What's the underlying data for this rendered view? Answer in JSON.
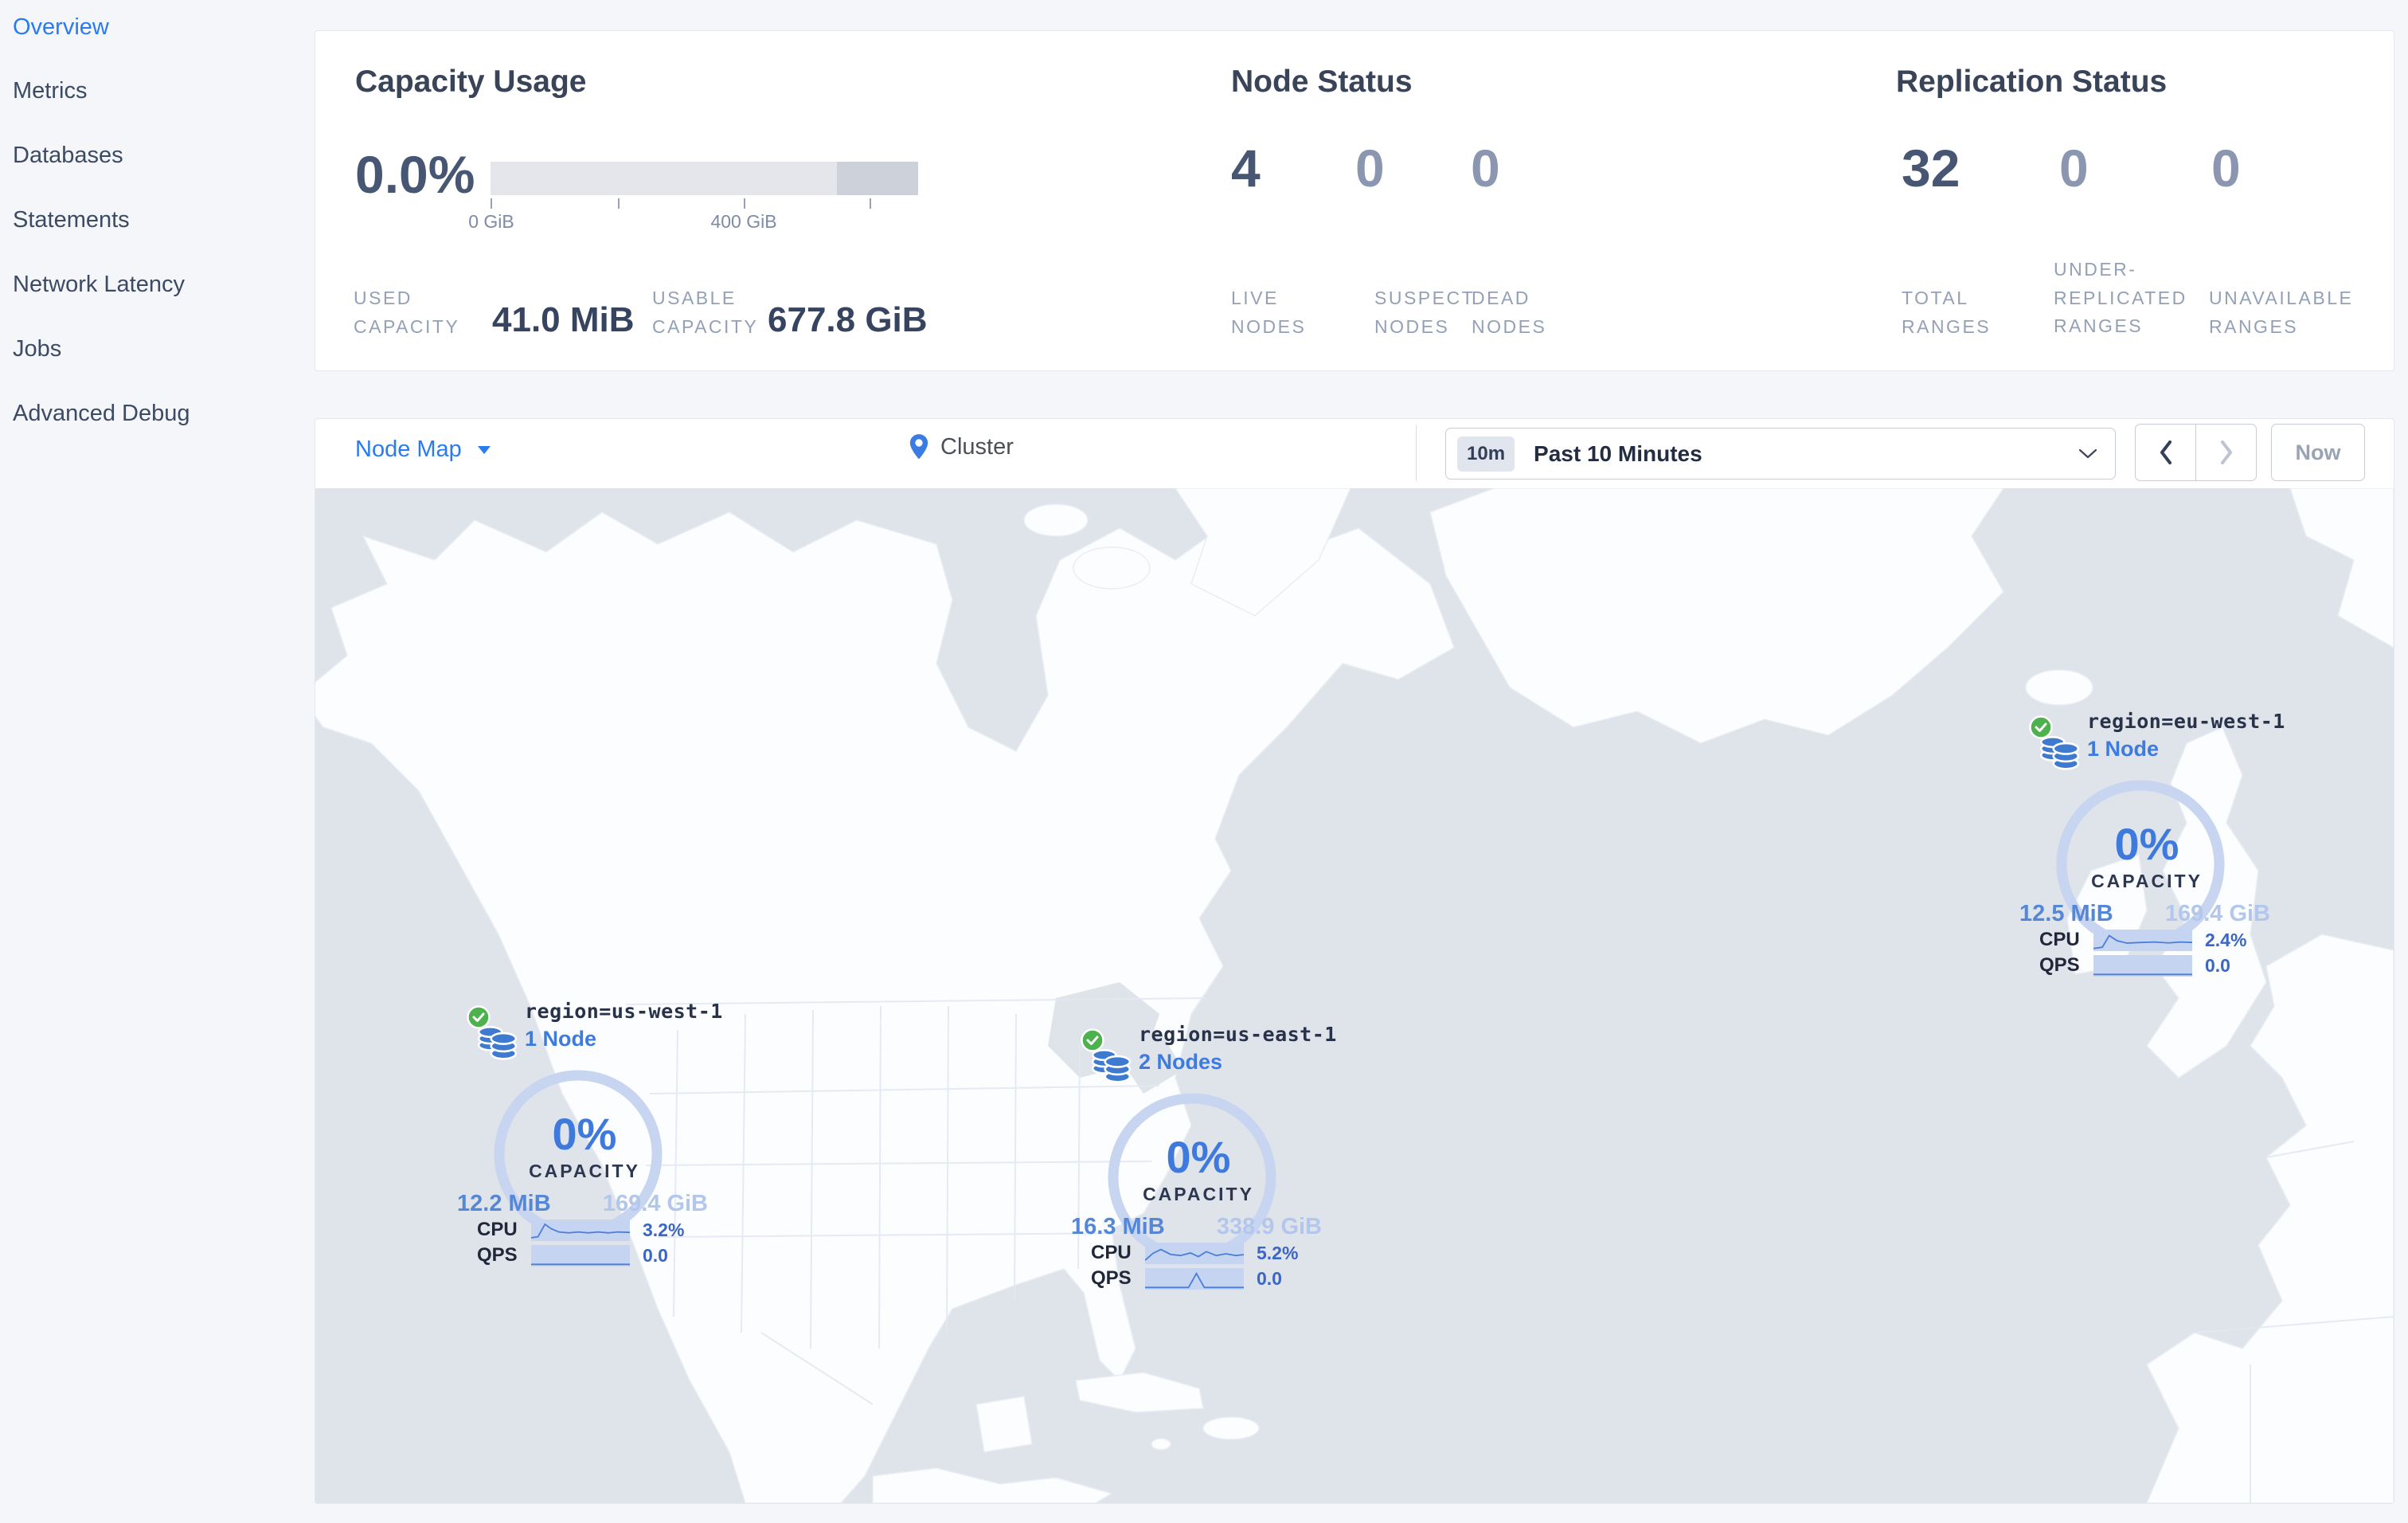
{
  "sidebar": {
    "items": [
      {
        "label": "Overview",
        "active": true
      },
      {
        "label": "Metrics",
        "active": false
      },
      {
        "label": "Databases",
        "active": false
      },
      {
        "label": "Statements",
        "active": false
      },
      {
        "label": "Network Latency",
        "active": false
      },
      {
        "label": "Jobs",
        "active": false
      },
      {
        "label": "Advanced Debug",
        "active": false
      }
    ]
  },
  "panels": {
    "capacity": {
      "title": "Capacity Usage",
      "percent": "0.0%",
      "tick_zero": "0 GiB",
      "tick_mid": "400 GiB",
      "used_label": "USED CAPACITY",
      "used_value": "41.0 MiB",
      "usable_label": "USABLE CAPACITY",
      "usable_value": "677.8 GiB"
    },
    "nodes": {
      "title": "Node Status",
      "live_value": "4",
      "live_label": "LIVE NODES",
      "suspect_value": "0",
      "suspect_label": "SUSPECT NODES",
      "dead_value": "0",
      "dead_label": "DEAD NODES"
    },
    "replication": {
      "title": "Replication Status",
      "total_value": "32",
      "total_label": "TOTAL RANGES",
      "under_value": "0",
      "under_label": "UNDER-REPLICATED RANGES",
      "unavail_value": "0",
      "unavail_label": "UNAVAILABLE RANGES"
    }
  },
  "toolbar": {
    "view_selector": "Node Map",
    "breadcrumb": "Cluster",
    "time_badge": "10m",
    "time_range": "Past 10 Minutes",
    "now_label": "Now"
  },
  "map": {
    "capacity_word": "CAPACITY",
    "markers": [
      {
        "region": "region=us-west-1",
        "nodes": "1 Node",
        "capacity_pct": "0%",
        "used": "12.2 MiB",
        "usable": "169.4 GiB",
        "cpu_label": "CPU",
        "cpu_value": "3.2%",
        "qps_label": "QPS",
        "qps_value": "0.0",
        "cpu_spark": [
          [
            0,
            0.85
          ],
          [
            0.07,
            0.8
          ],
          [
            0.14,
            0.22
          ],
          [
            0.2,
            0.42
          ],
          [
            0.28,
            0.58
          ],
          [
            0.38,
            0.62
          ],
          [
            0.48,
            0.58
          ],
          [
            0.58,
            0.62
          ],
          [
            0.68,
            0.58
          ],
          [
            0.78,
            0.62
          ],
          [
            0.88,
            0.58
          ],
          [
            1,
            0.6
          ]
        ],
        "qps_spark": [
          [
            0,
            0.9
          ],
          [
            1,
            0.9
          ]
        ]
      },
      {
        "region": "region=us-east-1",
        "nodes": "2 Nodes",
        "capacity_pct": "0%",
        "used": "16.3 MiB",
        "usable": "338.9 GiB",
        "cpu_label": "CPU",
        "cpu_value": "5.2%",
        "qps_label": "QPS",
        "qps_value": "0.0",
        "cpu_spark": [
          [
            0,
            0.82
          ],
          [
            0.08,
            0.5
          ],
          [
            0.16,
            0.32
          ],
          [
            0.26,
            0.55
          ],
          [
            0.36,
            0.6
          ],
          [
            0.46,
            0.48
          ],
          [
            0.54,
            0.65
          ],
          [
            0.62,
            0.42
          ],
          [
            0.72,
            0.6
          ],
          [
            0.82,
            0.52
          ],
          [
            0.92,
            0.6
          ],
          [
            1,
            0.56
          ]
        ],
        "qps_spark": [
          [
            0,
            0.9
          ],
          [
            0.44,
            0.9
          ],
          [
            0.52,
            0.25
          ],
          [
            0.6,
            0.9
          ],
          [
            1,
            0.9
          ]
        ]
      },
      {
        "region": "region=eu-west-1",
        "nodes": "1 Node",
        "capacity_pct": "0%",
        "used": "12.5 MiB",
        "usable": "169.4 GiB",
        "cpu_label": "CPU",
        "cpu_value": "2.4%",
        "qps_label": "QPS",
        "qps_value": "0.0",
        "cpu_spark": [
          [
            0,
            0.88
          ],
          [
            0.09,
            0.82
          ],
          [
            0.16,
            0.28
          ],
          [
            0.24,
            0.52
          ],
          [
            0.34,
            0.63
          ],
          [
            0.48,
            0.6
          ],
          [
            0.62,
            0.58
          ],
          [
            0.76,
            0.62
          ],
          [
            0.88,
            0.58
          ],
          [
            1,
            0.6
          ]
        ],
        "qps_spark": [
          [
            0,
            0.9
          ],
          [
            1,
            0.9
          ]
        ]
      }
    ]
  },
  "colors": {
    "accent_blue": "#2a7bf0",
    "gauge_arc": "#c8d5f1",
    "node_healthy_green": "#4db14d",
    "ocean": "#dfe3ea",
    "land": "#fcfdfe"
  }
}
